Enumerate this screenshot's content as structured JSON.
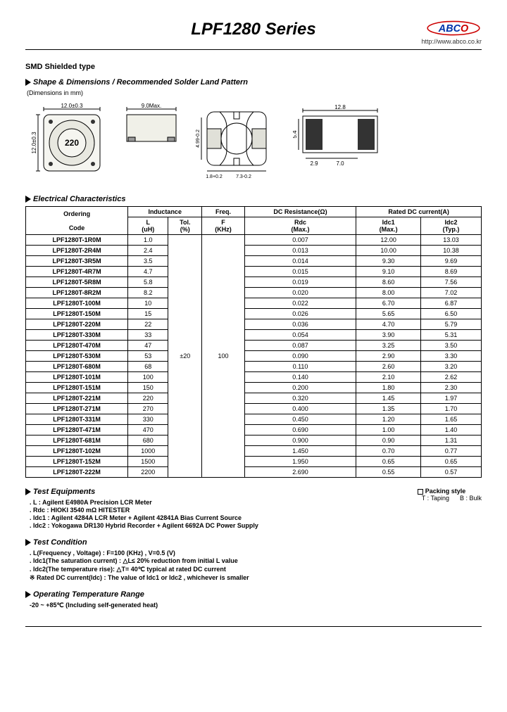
{
  "header": {
    "title": "LPF1280 Series",
    "url": "http://www.abco.co.kr",
    "logo_text": "ABCO",
    "logo_c1": "#0033aa",
    "logo_c2": "#cc0000",
    "logo_stroke": "#cc0000"
  },
  "s1": {
    "label": "SMD Shielded type"
  },
  "s2": {
    "label": "Shape & Dimensions / Recommended Solder Land Pattern",
    "note": "(Dimensions in mm)"
  },
  "dims": {
    "top_w": "12.0±0.3",
    "side_w": "9.0Max.",
    "body_label": "220",
    "side_h": "4.99-0.2",
    "slot_w": "1.8+0.2",
    "slot_gap": "7.3-0.2",
    "pad_w": "12.8",
    "pad_h": "5.4",
    "pad_a": "2.9",
    "pad_b": "7.0"
  },
  "s3": {
    "label": "Electrical Characteristics"
  },
  "table": {
    "headers": {
      "ordering": "Ordering",
      "code": "Code",
      "inductance": "Inductance",
      "l": "L",
      "l_unit": "(uH)",
      "tol": "Tol.",
      "tol_unit": "(%)",
      "freq": "Freq.",
      "f": "F",
      "f_unit": "(KHz)",
      "dcr": "DC Resistance(Ω)",
      "rdc": "Rdc",
      "rdc_sub": "(Max.)",
      "rated": "Rated DC current(A)",
      "idc1": "Idc1",
      "idc1_sub": "(Max.)",
      "idc2": "Idc2",
      "idc2_sub": "(Typ.)"
    },
    "tol_val": "±20",
    "freq_val": "100",
    "groups": [
      [
        {
          "code": "LPF1280T-1R0M",
          "l": "1.0",
          "rdc": "0.007",
          "i1": "12.00",
          "i2": "13.03"
        },
        {
          "code": "LPF1280T-2R4M",
          "l": "2.4",
          "rdc": "0.013",
          "i1": "10.00",
          "i2": "10.38"
        },
        {
          "code": "LPF1280T-3R5M",
          "l": "3.5",
          "rdc": "0.014",
          "i1": "9.30",
          "i2": "9.69"
        },
        {
          "code": "LPF1280T-4R7M",
          "l": "4.7",
          "rdc": "0.015",
          "i1": "9.10",
          "i2": "8.69"
        },
        {
          "code": "LPF1280T-5R8M",
          "l": "5.8",
          "rdc": "0.019",
          "i1": "8.60",
          "i2": "7.56"
        },
        {
          "code": "LPF1280T-8R2M",
          "l": "8.2",
          "rdc": "0.020",
          "i1": "8.00",
          "i2": "7.02"
        }
      ],
      [
        {
          "code": "LPF1280T-100M",
          "l": "10",
          "rdc": "0.022",
          "i1": "6.70",
          "i2": "6.87"
        },
        {
          "code": "LPF1280T-150M",
          "l": "15",
          "rdc": "0.026",
          "i1": "5.65",
          "i2": "6.50"
        },
        {
          "code": "LPF1280T-220M",
          "l": "22",
          "rdc": "0.036",
          "i1": "4.70",
          "i2": "5.79"
        },
        {
          "code": "LPF1280T-330M",
          "l": "33",
          "rdc": "0.054",
          "i1": "3.90",
          "i2": "5.31"
        },
        {
          "code": "LPF1280T-470M",
          "l": "47",
          "rdc": "0.087",
          "i1": "3.25",
          "i2": "3.50"
        },
        {
          "code": "LPF1280T-530M",
          "l": "53",
          "rdc": "0.090",
          "i1": "2.90",
          "i2": "3.30"
        },
        {
          "code": "LPF1280T-680M",
          "l": "68",
          "rdc": "0.110",
          "i1": "2.60",
          "i2": "3.20"
        }
      ],
      [
        {
          "code": "LPF1280T-101M",
          "l": "100",
          "rdc": "0.140",
          "i1": "2.10",
          "i2": "2.62"
        },
        {
          "code": "LPF1280T-151M",
          "l": "150",
          "rdc": "0.200",
          "i1": "1.80",
          "i2": "2.30"
        },
        {
          "code": "LPF1280T-221M",
          "l": "220",
          "rdc": "0.320",
          "i1": "1.45",
          "i2": "1.97"
        },
        {
          "code": "LPF1280T-271M",
          "l": "270",
          "rdc": "0.400",
          "i1": "1.35",
          "i2": "1.70"
        },
        {
          "code": "LPF1280T-331M",
          "l": "330",
          "rdc": "0.450",
          "i1": "1.20",
          "i2": "1.65"
        },
        {
          "code": "LPF1280T-471M",
          "l": "470",
          "rdc": "0.690",
          "i1": "1.00",
          "i2": "1.40"
        },
        {
          "code": "LPF1280T-681M",
          "l": "680",
          "rdc": "0.900",
          "i1": "0.90",
          "i2": "1.31"
        }
      ],
      [
        {
          "code": "LPF1280T-102M",
          "l": "1000",
          "rdc": "1.450",
          "i1": "0.70",
          "i2": "0.77"
        },
        {
          "code": "LPF1280T-152M",
          "l": "1500",
          "rdc": "1.950",
          "i1": "0.65",
          "i2": "0.65"
        },
        {
          "code": "LPF1280T-222M",
          "l": "2200",
          "rdc": "2.690",
          "i1": "0.55",
          "i2": "0.57"
        }
      ]
    ]
  },
  "s4": {
    "label": "Test Equipments",
    "lines": [
      ". L : Agilent E4980A Precision LCR Meter",
      ". Rdc : HIOKI 3540 mΩ HITESTER",
      ". Idc1 : Agilent 4284A LCR Meter + Agilent 42841A Bias Current Source",
      ". Idc2 : Yokogawa DR130 Hybrid Recorder + Agilent 6692A DC Power Supply"
    ]
  },
  "packing": {
    "label": "Packing style",
    "line": "T : Taping      B : Bulk"
  },
  "s5": {
    "label": "Test Condition",
    "lines": [
      ". L(Frequency , Voltage) : F=100 (KHz) , V=0.5 (V)",
      ". Idc1(The saturation current) : △L≤ 20% reduction from initial L value",
      ". Idc2(The temperature rise): △T= 40℃ typical at rated DC current",
      "※ Rated DC current(Idc) : The value of Idc1 or Idc2 , whichever is smaller"
    ]
  },
  "s6": {
    "label": "Operating Temperature Range",
    "line": "-20 ~ +85℃ (Including self-generated heat)"
  }
}
